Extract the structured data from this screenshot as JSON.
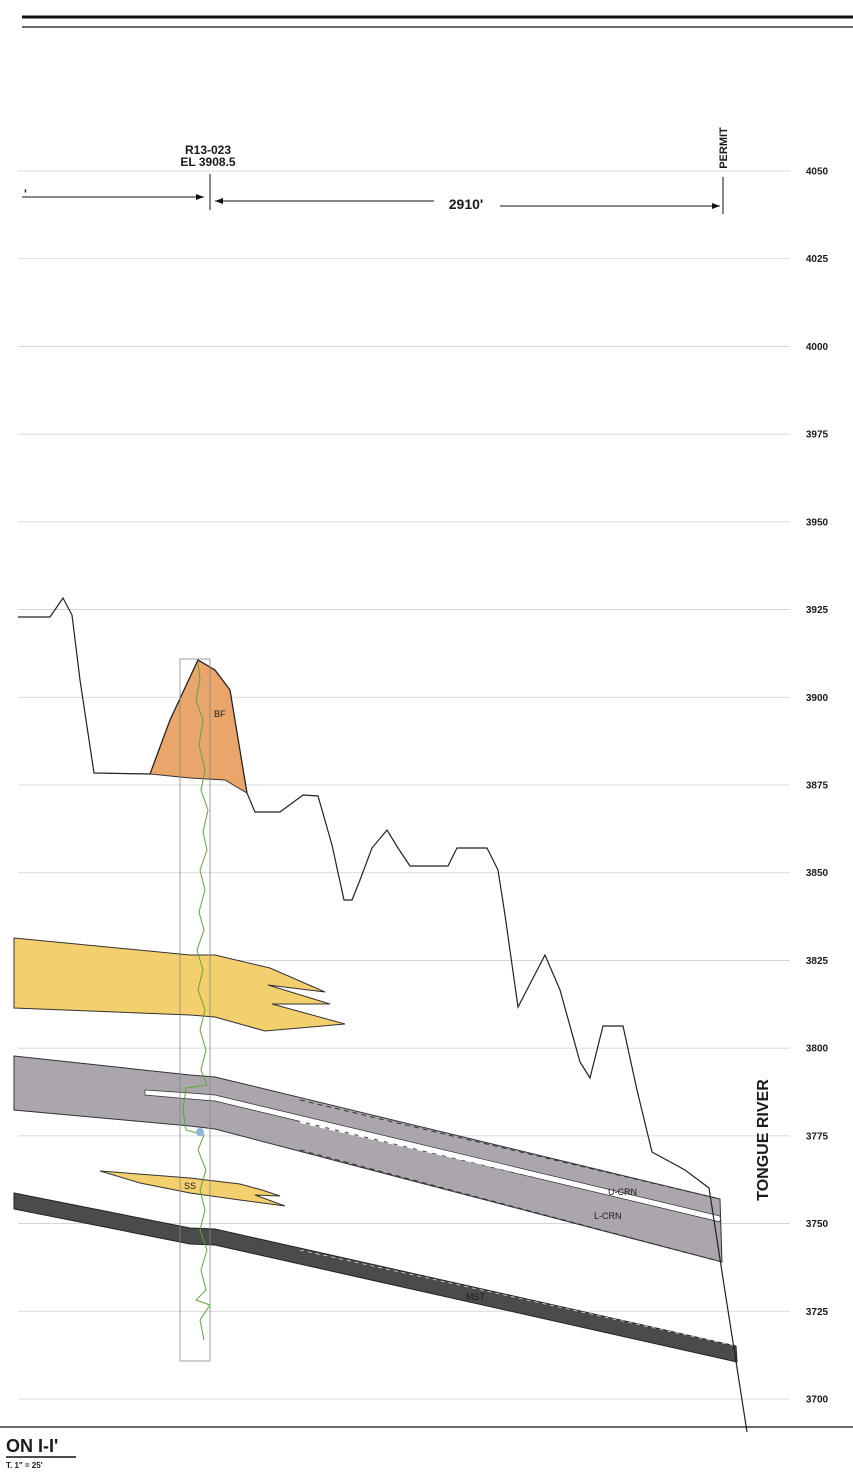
{
  "well": {
    "name": "R13-023",
    "elevation": "EL 3908.5"
  },
  "permit_label": "PERMIT",
  "distances": {
    "left_fragment": "'",
    "right": "2910'"
  },
  "formation_name": "TONGUE RIVER",
  "section_title": "ON I-I'",
  "scale_text": "T. 1\" = 25'",
  "units": {
    "bf": "BF",
    "ss": "SS",
    "u_crn": "U-CRN",
    "l_crn": "L-CRN",
    "mst": "MST"
  },
  "elevation_scale": {
    "ticks": [
      4050,
      4025,
      4000,
      3975,
      3950,
      3925,
      3900,
      3875,
      3850,
      3825,
      3800,
      3775,
      3750,
      3725,
      3700
    ]
  },
  "colors": {
    "burn_fill": "#e9a56a",
    "sandstone_fill": "#f4cf6e",
    "coal_fill": "#aba5ad",
    "mudstone_fill": "#4b4b4b",
    "log_curve": "#5ea63a",
    "grid": "#cfcfcf"
  }
}
